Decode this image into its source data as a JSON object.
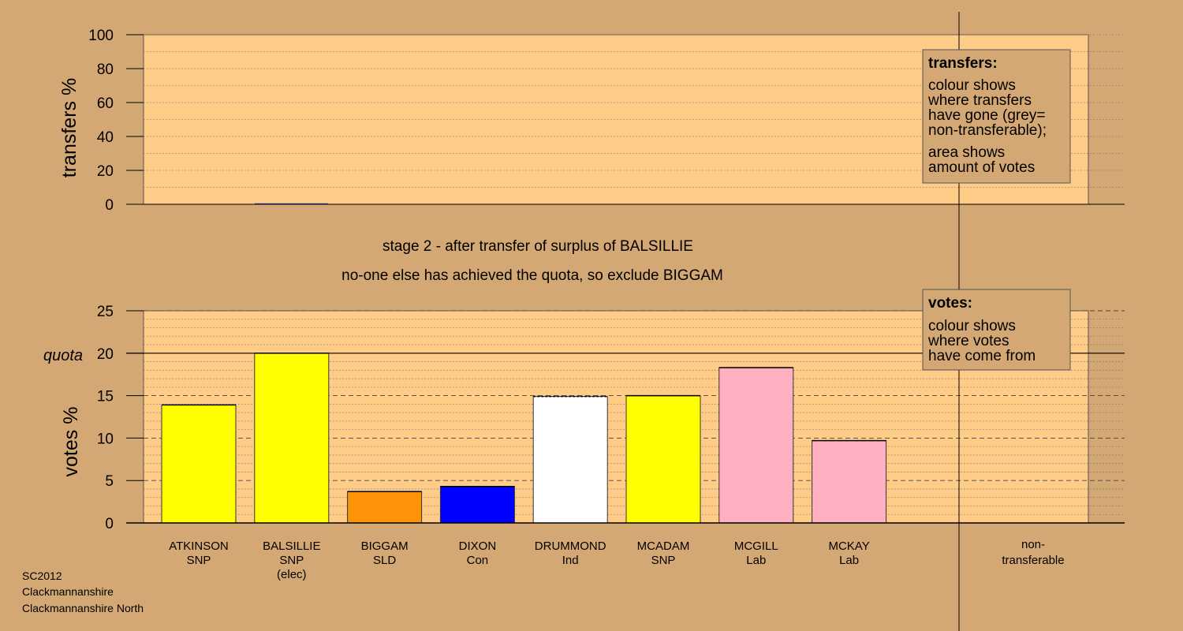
{
  "colors": {
    "background": "#D4A874",
    "plot_background": "#FFCC88",
    "SNP": "#FFFF00",
    "SLD": "#FF9408",
    "Con": "#0000FF",
    "Ind": "#FFFFFF",
    "Lab": "#FFB0C0"
  },
  "stage_text": {
    "line1": "stage 2 - after transfer of surplus of BALSILLIE",
    "line2": "no-one else has achieved the quota, so exclude BIGGAM"
  },
  "footer": {
    "line1": "SC2012",
    "line2": "Clackmannanshire",
    "line3": "Clackmannanshire North"
  },
  "legend_transfers": {
    "title": "transfers:",
    "lines": [
      "colour shows",
      "where transfers",
      "have gone (grey=",
      "non-transferable);",
      "area shows",
      "amount of votes"
    ]
  },
  "legend_votes": {
    "title": "votes:",
    "lines": [
      "colour shows",
      "where votes",
      "have come from"
    ]
  },
  "chart_data": [
    {
      "type": "bar",
      "title": "",
      "ylabel": "transfers %",
      "ylim": [
        0,
        100
      ],
      "yticks": [
        "0",
        "20",
        "40",
        "60",
        "80",
        "100"
      ],
      "grid": true,
      "categories": [
        "ATKINSON SNP",
        "BALSILLIE SNP (elec)",
        "BIGGAM SLD",
        "DIXON Con",
        "DRUMMOND Ind",
        "MCADAM SNP",
        "MCGILL Lab",
        "MCKAY Lab",
        "non-transferable"
      ],
      "values": [
        0,
        0,
        0,
        0,
        0,
        0,
        0,
        0,
        0
      ]
    },
    {
      "type": "bar",
      "title": "",
      "ylabel": "votes %",
      "ylim": [
        0,
        25
      ],
      "yticks": [
        "0",
        "5",
        "10",
        "15",
        "20",
        "25"
      ],
      "quota_label": "quota",
      "quota": 20,
      "grid": true,
      "candidates": [
        {
          "name": "ATKINSON",
          "party": "SNP",
          "note": "",
          "value": 13.9,
          "color": "#FFFF00"
        },
        {
          "name": "BALSILLIE",
          "party": "SNP",
          "note": "(elec)",
          "value": 20.0,
          "color": "#FFFF00"
        },
        {
          "name": "BIGGAM",
          "party": "SLD",
          "note": "",
          "value": 3.7,
          "color": "#FF9408"
        },
        {
          "name": "DIXON",
          "party": "Con",
          "note": "",
          "value": 4.3,
          "color": "#0000FF"
        },
        {
          "name": "DRUMMOND",
          "party": "Ind",
          "note": "",
          "value": 14.9,
          "color": "#FFFFFF"
        },
        {
          "name": "MCADAM",
          "party": "SNP",
          "note": "",
          "value": 15.0,
          "color": "#FFFF00"
        },
        {
          "name": "MCGILL",
          "party": "Lab",
          "note": "",
          "value": 18.3,
          "color": "#FFB0C0"
        },
        {
          "name": "MCKAY",
          "party": "Lab",
          "note": "",
          "value": 9.7,
          "color": "#FFB0C0"
        }
      ],
      "non_transferable": {
        "line1": "non-",
        "line2": "transferable",
        "value": 0
      }
    }
  ]
}
